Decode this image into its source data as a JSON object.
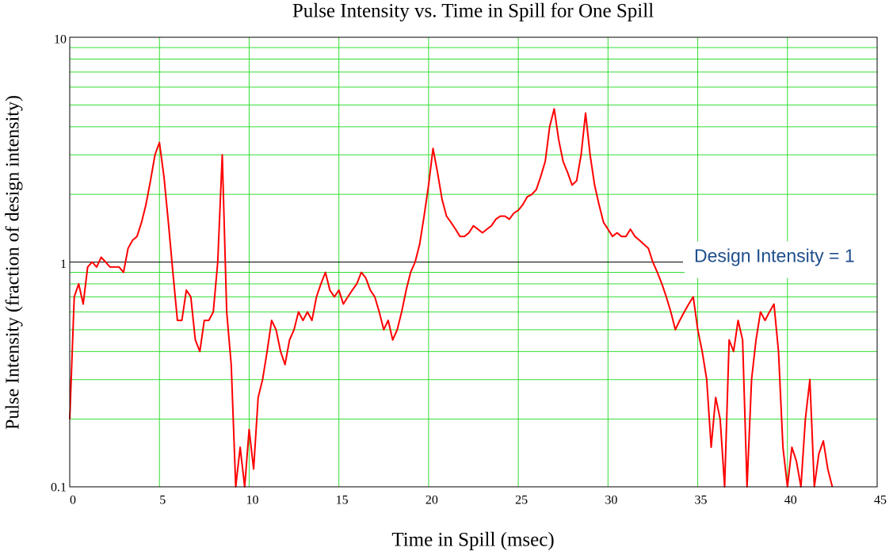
{
  "chart_data": {
    "type": "line",
    "title": "Pulse Intensity vs. Time in Spill for One Spill",
    "x_label": "Time in Spill (msec)",
    "y_label": "Pulse Intensity (fraction of design intensity)",
    "log_y": true,
    "grid": true,
    "grid_color": "#33dd33",
    "xlim": [
      0,
      45
    ],
    "xticks": [
      0,
      5,
      10,
      15,
      20,
      25,
      30,
      35,
      40,
      45
    ],
    "ylim": [
      0.1,
      10
    ],
    "yticks": [
      0.1,
      1,
      10
    ],
    "yminor": [
      0.2,
      0.3,
      0.4,
      0.5,
      0.6,
      0.7,
      0.8,
      0.9,
      2,
      3,
      4,
      5,
      6,
      7,
      8,
      9
    ],
    "reference_line": {
      "value": 1,
      "label": "Design Intensity = 1",
      "color": "#000000",
      "label_color": "#1f4e8c"
    },
    "x": [
      0,
      0.25,
      0.5,
      0.75,
      1,
      1.25,
      1.5,
      1.75,
      2,
      2.25,
      2.5,
      2.75,
      3,
      3.25,
      3.5,
      3.75,
      4,
      4.25,
      4.5,
      4.75,
      5,
      5.25,
      5.5,
      5.75,
      6,
      6.25,
      6.5,
      6.75,
      7,
      7.25,
      7.5,
      7.75,
      8,
      8.25,
      8.5,
      8.75,
      9,
      9.25,
      9.5,
      9.75,
      10,
      10.25,
      10.5,
      10.75,
      11,
      11.25,
      11.5,
      11.75,
      12,
      12.25,
      12.5,
      12.75,
      13,
      13.25,
      13.5,
      13.75,
      14,
      14.25,
      14.5,
      14.75,
      15,
      15.25,
      15.5,
      15.75,
      16,
      16.25,
      16.5,
      16.75,
      17,
      17.25,
      17.5,
      17.75,
      18,
      18.25,
      18.5,
      18.75,
      19,
      19.25,
      19.5,
      19.75,
      20,
      20.25,
      20.5,
      20.75,
      21,
      21.25,
      21.5,
      21.75,
      22,
      22.25,
      22.5,
      22.75,
      23,
      23.25,
      23.5,
      23.75,
      24,
      24.25,
      24.5,
      24.75,
      25,
      25.25,
      25.5,
      25.75,
      26,
      26.25,
      26.5,
      26.75,
      27,
      27.25,
      27.5,
      27.75,
      28,
      28.25,
      28.5,
      28.75,
      29,
      29.25,
      29.5,
      29.75,
      30,
      30.25,
      30.5,
      30.75,
      31,
      31.25,
      31.5,
      31.75,
      32,
      32.25,
      32.5,
      32.75,
      33,
      33.25,
      33.5,
      33.75,
      34,
      34.25,
      34.5,
      34.75,
      35,
      35.25,
      35.5,
      35.75,
      36,
      36.25,
      36.5,
      36.75,
      37,
      37.25,
      37.5,
      37.75,
      38,
      38.25,
      38.5,
      38.75,
      39,
      39.25,
      39.5,
      39.75,
      40,
      40.25,
      40.5,
      40.75,
      41,
      41.25,
      41.5,
      41.75,
      42,
      42.25,
      42.5
    ],
    "series": [
      {
        "name": "Pulse Intensity",
        "color": "#ff0000",
        "values": [
          0.2,
          0.7,
          0.8,
          0.65,
          0.95,
          1.0,
          0.95,
          1.05,
          1.0,
          0.95,
          0.95,
          0.95,
          0.9,
          1.15,
          1.25,
          1.3,
          1.5,
          1.8,
          2.3,
          3.0,
          3.4,
          2.4,
          1.5,
          0.9,
          0.55,
          0.55,
          0.75,
          0.7,
          0.45,
          0.4,
          0.55,
          0.55,
          0.6,
          1.0,
          3.0,
          0.6,
          0.35,
          0.1,
          0.15,
          0.1,
          0.18,
          0.12,
          0.25,
          0.3,
          0.4,
          0.55,
          0.5,
          0.4,
          0.35,
          0.45,
          0.5,
          0.6,
          0.55,
          0.6,
          0.55,
          0.7,
          0.8,
          0.9,
          0.75,
          0.7,
          0.75,
          0.65,
          0.7,
          0.75,
          0.8,
          0.9,
          0.85,
          0.75,
          0.7,
          0.6,
          0.5,
          0.55,
          0.45,
          0.5,
          0.6,
          0.75,
          0.9,
          1.0,
          1.2,
          1.6,
          2.2,
          3.2,
          2.5,
          1.9,
          1.6,
          1.5,
          1.4,
          1.3,
          1.3,
          1.35,
          1.45,
          1.4,
          1.35,
          1.4,
          1.45,
          1.55,
          1.6,
          1.6,
          1.55,
          1.65,
          1.7,
          1.8,
          1.95,
          2.0,
          2.1,
          2.4,
          2.8,
          4.0,
          4.8,
          3.5,
          2.8,
          2.5,
          2.2,
          2.3,
          3.0,
          4.6,
          3.0,
          2.2,
          1.8,
          1.5,
          1.4,
          1.3,
          1.35,
          1.3,
          1.3,
          1.4,
          1.3,
          1.25,
          1.2,
          1.15,
          1.0,
          0.9,
          0.8,
          0.7,
          0.6,
          0.5,
          0.55,
          0.6,
          0.65,
          0.7,
          0.5,
          0.4,
          0.3,
          0.15,
          0.25,
          0.2,
          0.1,
          0.45,
          0.4,
          0.55,
          0.45,
          0.1,
          0.3,
          0.45,
          0.6,
          0.55,
          0.6,
          0.65,
          0.4,
          0.15,
          0.1,
          0.15,
          0.13,
          0.1,
          0.2,
          0.3,
          0.1,
          0.14,
          0.16,
          0.12,
          0.1
        ]
      }
    ]
  }
}
